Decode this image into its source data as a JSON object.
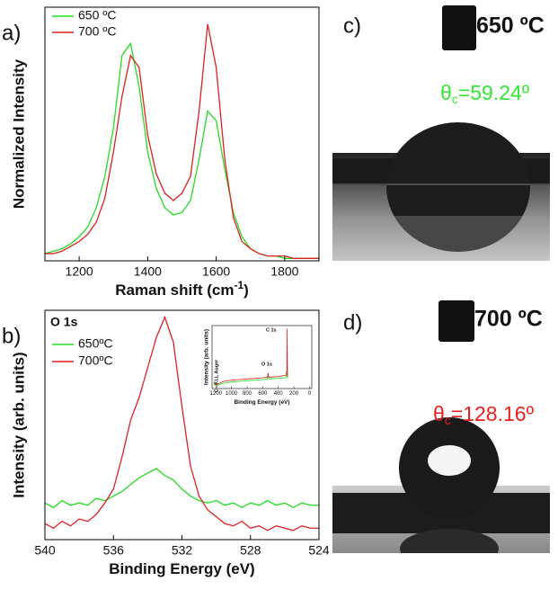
{
  "chart_data": [
    {
      "type": "line",
      "panel_label": "a)",
      "ylabel": "Normalized Intensity",
      "xlabel": "Raman shift (cm",
      "xlabel_superscript": "-1",
      "xlabel_suffix": ")",
      "xlim": [
        1100,
        1900
      ],
      "xticks": [
        1200,
        1400,
        1600,
        1800
      ],
      "ylim": [
        0,
        1.05
      ],
      "x": [
        1100,
        1125,
        1150,
        1175,
        1200,
        1225,
        1250,
        1275,
        1300,
        1325,
        1350,
        1375,
        1400,
        1425,
        1450,
        1475,
        1500,
        1525,
        1550,
        1575,
        1600,
        1625,
        1650,
        1675,
        1700,
        1725,
        1750,
        1775,
        1800,
        1825,
        1850,
        1875,
        1900
      ],
      "series": [
        {
          "name": "650 ºC",
          "color": "#22dd22",
          "values": [
            0.03,
            0.04,
            0.05,
            0.07,
            0.1,
            0.14,
            0.22,
            0.35,
            0.55,
            0.85,
            0.9,
            0.72,
            0.45,
            0.3,
            0.22,
            0.19,
            0.2,
            0.25,
            0.42,
            0.62,
            0.58,
            0.38,
            0.2,
            0.1,
            0.05,
            0.03,
            0.02,
            0.02,
            0.01,
            0.01,
            0.01,
            0.01,
            0.01
          ]
        },
        {
          "name": "700 ºC",
          "color": "#dd2222",
          "values": [
            0.03,
            0.03,
            0.04,
            0.06,
            0.08,
            0.11,
            0.16,
            0.26,
            0.45,
            0.68,
            0.85,
            0.8,
            0.52,
            0.36,
            0.28,
            0.25,
            0.28,
            0.35,
            0.62,
            0.98,
            0.8,
            0.42,
            0.18,
            0.08,
            0.05,
            0.03,
            0.02,
            0.02,
            0.02,
            0.01,
            0.01,
            0.01,
            0.01
          ]
        }
      ]
    },
    {
      "type": "line",
      "panel_label": "b)",
      "title": "O 1s",
      "ylabel": "Intensity (arb. units)",
      "xlabel": "Binding Energy (eV)",
      "xlim": [
        540,
        524
      ],
      "xticks": [
        540,
        536,
        532,
        528,
        524
      ],
      "ylim": [
        0,
        1
      ],
      "x": [
        540,
        539.5,
        539,
        538.5,
        538,
        537.5,
        537,
        536.5,
        536,
        535.5,
        535,
        534.5,
        534,
        533.5,
        533,
        532.5,
        532,
        531.5,
        531,
        530.5,
        530,
        529.5,
        529,
        528.5,
        528,
        527.5,
        527,
        526.5,
        526,
        525.5,
        525,
        524.5,
        524
      ],
      "series": [
        {
          "name": "650ºC",
          "color": "#22dd22",
          "values": [
            0.16,
            0.14,
            0.17,
            0.15,
            0.16,
            0.15,
            0.18,
            0.17,
            0.19,
            0.21,
            0.24,
            0.27,
            0.29,
            0.31,
            0.28,
            0.26,
            0.22,
            0.19,
            0.17,
            0.16,
            0.17,
            0.15,
            0.16,
            0.14,
            0.16,
            0.15,
            0.17,
            0.15,
            0.16,
            0.14,
            0.16,
            0.15,
            0.15
          ]
        },
        {
          "name": "700ºC",
          "color": "#dd2222",
          "values": [
            0.07,
            0.05,
            0.08,
            0.06,
            0.09,
            0.08,
            0.11,
            0.16,
            0.22,
            0.36,
            0.52,
            0.62,
            0.75,
            0.88,
            0.97,
            0.86,
            0.58,
            0.32,
            0.19,
            0.13,
            0.1,
            0.07,
            0.06,
            0.08,
            0.05,
            0.06,
            0.04,
            0.06,
            0.05,
            0.04,
            0.06,
            0.05,
            0.05
          ]
        }
      ]
    },
    {
      "type": "line",
      "ylabel": "Intensity (arb. units)",
      "xlabel": "Binding Energy (eV)",
      "annotations": [
        "C 1s",
        "O 1s",
        "C - KLL Auger"
      ],
      "xlim": [
        1250,
        -30
      ],
      "xticks": [
        1200,
        1000,
        800,
        600,
        400,
        200,
        0
      ],
      "ylim": [
        0,
        1.05
      ],
      "x": [
        1230,
        1200,
        1100,
        1000,
        900,
        800,
        700,
        600,
        540,
        532,
        520,
        400,
        300,
        290,
        286,
        284,
        282,
        280
      ],
      "series": [
        {
          "color": "#22dd22",
          "values": [
            0.08,
            0.05,
            0.09,
            0.11,
            0.12,
            0.13,
            0.14,
            0.15,
            0.16,
            0.2,
            0.16,
            0.17,
            0.18,
            0.22,
            0.5,
            0.3,
            0.2,
            0.17
          ]
        },
        {
          "color": "#dd2222",
          "values": [
            0.1,
            0.06,
            0.12,
            0.14,
            0.15,
            0.16,
            0.17,
            0.18,
            0.19,
            0.26,
            0.19,
            0.2,
            0.22,
            0.3,
            1.0,
            0.6,
            0.25,
            0.2
          ]
        }
      ]
    }
  ],
  "photos": [
    {
      "panel_label": "c)",
      "temperature": "650 ºC",
      "angle_symbol": "θ",
      "angle_subscript": "c",
      "angle_text": "=59.24º"
    },
    {
      "panel_label": "d)",
      "temperature": "700 ºC",
      "angle_symbol": "θ",
      "angle_subscript": "c",
      "angle_text": "=128.16º"
    }
  ]
}
